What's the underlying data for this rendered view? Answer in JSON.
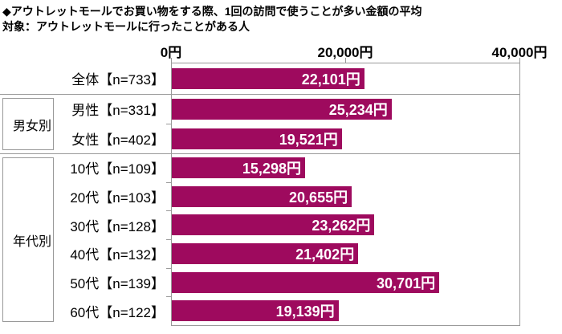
{
  "header": {
    "title_line1": "◆アウトレットモールでお買い物をする際、1回の訪問で使うことが多い金額の平均",
    "title_line2": "対象：アウトレットモールに行ったことがある人"
  },
  "chart_data": {
    "type": "bar",
    "orientation": "horizontal",
    "title": "アウトレットモールでお買い物をする際、1回の訪問で使うことが多い金額の平均",
    "subtitle": "対象：アウトレットモールに行ったことがある人",
    "xlim": [
      0,
      40000
    ],
    "grid": false,
    "x_ticks": [
      {
        "value": 0,
        "label": "0円"
      },
      {
        "value": 20000,
        "label": "20,000円"
      },
      {
        "value": 40000,
        "label": "40,000円"
      }
    ],
    "value_suffix": "円",
    "bar_color": "#9E0A5E",
    "groups": [
      {
        "label": "",
        "rows": [
          {
            "category": "全体【n=733】",
            "value": 22101,
            "value_label": "22,101円"
          }
        ]
      },
      {
        "label": "男女別",
        "rows": [
          {
            "category": "男性【n=331】",
            "value": 25234,
            "value_label": "25,234円"
          },
          {
            "category": "女性【n=402】",
            "value": 19521,
            "value_label": "19,521円"
          }
        ]
      },
      {
        "label": "年代別",
        "rows": [
          {
            "category": "10代【n=109】",
            "value": 15298,
            "value_label": "15,298円"
          },
          {
            "category": "20代【n=103】",
            "value": 20655,
            "value_label": "20,655円"
          },
          {
            "category": "30代【n=128】",
            "value": 23262,
            "value_label": "23,262円"
          },
          {
            "category": "40代【n=132】",
            "value": 21402,
            "value_label": "21,402円"
          },
          {
            "category": "50代【n=139】",
            "value": 30701,
            "value_label": "30,701円"
          },
          {
            "category": "60代【n=122】",
            "value": 19139,
            "value_label": "19,139円"
          }
        ]
      }
    ]
  },
  "colors": {
    "bar": "#9E0A5E",
    "line": "#999999",
    "text": "#000000",
    "value_text": "#FFFFFF",
    "background": "#FFFFFF"
  }
}
